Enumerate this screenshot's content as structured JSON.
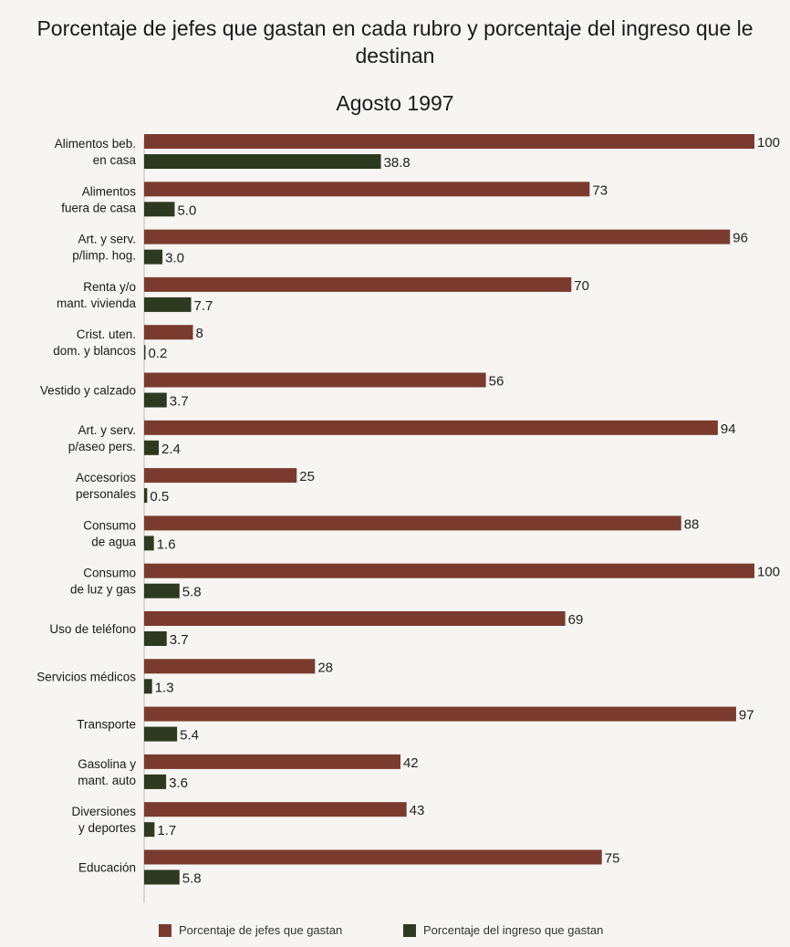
{
  "title": "Porcentaje de jefes que gastan en cada rubro y porcentaje del ingreso que le destinan",
  "subtitle": "Agosto 1997",
  "colors": {
    "series1": "#7a3b2e",
    "series2": "#2e3a1f"
  },
  "chart_data": {
    "type": "bar",
    "orientation": "horizontal",
    "categories": [
      [
        "Alimentos beb.",
        "en casa"
      ],
      [
        "Alimentos",
        "fuera de casa"
      ],
      [
        "Art. y serv.",
        "p/limp. hog."
      ],
      [
        "Renta y/o",
        "mant. vivienda"
      ],
      [
        "Crist. uten.",
        "dom. y blancos"
      ],
      [
        "Vestido y calzado"
      ],
      [
        "Art. y serv.",
        "p/aseo pers."
      ],
      [
        "Accesorios",
        "personales"
      ],
      [
        "Consumo",
        "de agua"
      ],
      [
        "Consumo",
        "de luz y gas"
      ],
      [
        "Uso de teléfono"
      ],
      [
        "Servicios médicos"
      ],
      [
        "Transporte"
      ],
      [
        "Gasolina y",
        "mant. auto"
      ],
      [
        "Diversiones",
        "y deportes"
      ],
      [
        "Educación"
      ]
    ],
    "series": [
      {
        "name": "Porcentaje de jefes que gastan",
        "values": [
          100,
          73,
          96,
          70,
          8,
          56,
          94,
          25,
          88,
          100,
          69,
          28,
          97,
          42,
          43,
          75
        ],
        "labels": [
          "100",
          "73",
          "96",
          "70",
          "8",
          "56",
          "94",
          "25",
          "88",
          "100",
          "69",
          "28",
          "97",
          "42",
          "43",
          "75"
        ]
      },
      {
        "name": "Porcentaje del ingreso que gastan",
        "values": [
          38.8,
          5.0,
          3.0,
          7.7,
          0.2,
          3.7,
          2.4,
          0.5,
          1.6,
          5.8,
          3.7,
          1.3,
          5.4,
          3.6,
          1.7,
          5.8
        ],
        "labels": [
          "38.8",
          "5.0",
          "3.0",
          "7.7",
          "0.2",
          "3.7",
          "2.4",
          "0.5",
          "1.6",
          "5.8",
          "3.7",
          "1.3",
          "5.4",
          "3.6",
          "1.7",
          "5.8"
        ]
      }
    ],
    "xlim": [
      0,
      100
    ],
    "grid": false,
    "legend_position": "bottom"
  }
}
